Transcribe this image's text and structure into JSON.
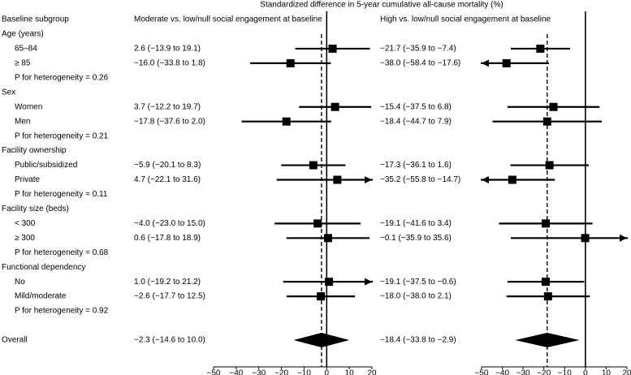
{
  "chart_data": {
    "type": "forest",
    "title": "Standardized difference in 5-year cumulative all-cause mortality (%)",
    "row_header": "Baseline subgroup",
    "groups": [
      {
        "name": "Age (years)",
        "subgroups": [
          "65–84",
          "≥ 85"
        ],
        "heterogeneity": "P for heterogeneity = 0.26"
      },
      {
        "name": "Sex",
        "subgroups": [
          "Women",
          "Men"
        ],
        "heterogeneity": "P for heterogeneity = 0.21"
      },
      {
        "name": "Facility ownership",
        "subgroups": [
          "Public/subsidized",
          "Private"
        ],
        "heterogeneity": "P for heterogeneity = 0.11"
      },
      {
        "name": "Facility size (beds)",
        "subgroups": [
          "< 300",
          "≥ 300"
        ],
        "heterogeneity": "P for heterogeneity = 0.68"
      },
      {
        "name": "Functional dependency",
        "subgroups": [
          "No",
          "Mild/moderate"
        ],
        "heterogeneity": "P for heterogeneity = 0.92"
      }
    ],
    "overall_label": "Overall",
    "panels": [
      {
        "title": "Moderate vs. low/null social engagement at baseline",
        "values": [
          2.6,
          -16.0,
          3.7,
          -17.8,
          -5.9,
          4.7,
          -4.0,
          0.6,
          1.0,
          -2.6
        ],
        "lower": [
          -13.9,
          -33.8,
          -12.2,
          -37.6,
          -20.1,
          -22.1,
          -23.0,
          -17.8,
          -19.2,
          -17.7
        ],
        "upper": [
          19.1,
          1.8,
          19.7,
          2.0,
          8.3,
          31.6,
          15.0,
          18.9,
          21.2,
          12.5
        ],
        "value_labels": [
          "2.6 (−13.9 to 19.1)",
          "−16.0 (−33.8 to 1.8)",
          "3.7 (−12.2 to 19.7)",
          "−17.8 (−37.6 to 2.0)",
          "−5.9 (−20.1 to 8.3)",
          "4.7 (−22.1 to 31.6)",
          "−4.0 (−23.0 to 15.0)",
          "0.6 (−17.8 to 18.9)",
          "1.0 (−19.2 to 21.2)",
          "−2.6 (−17.7 to 12.5)"
        ],
        "overall": -2.3,
        "overall_lower": -14.6,
        "overall_upper": 10.0,
        "overall_value_label": "−2.3 (−14.6 to 10.0)",
        "xlim": [
          -50,
          20
        ],
        "xticks": [
          {
            "value": -50,
            "label": "−50"
          },
          {
            "value": -40,
            "label": "−40"
          },
          {
            "value": -30,
            "label": "−30"
          },
          {
            "value": -20,
            "label": "−20"
          },
          {
            "value": -10,
            "label": "−10"
          },
          0,
          10,
          20
        ]
      },
      {
        "title": "High vs. low/null social engagement at baseline",
        "values": [
          -21.7,
          -38.0,
          -15.4,
          -18.4,
          -17.3,
          -35.2,
          -19.1,
          -0.1,
          -19.1,
          -18.0
        ],
        "lower": [
          -35.9,
          -58.4,
          -37.5,
          -44.7,
          -36.1,
          -55.8,
          -41.6,
          -35.9,
          -37.5,
          -38.0
        ],
        "upper": [
          -7.4,
          -17.6,
          6.8,
          7.9,
          1.6,
          -14.7,
          3.4,
          35.6,
          -0.6,
          2.1
        ],
        "value_labels": [
          "−21.7 (−35.9 to −7.4)",
          "−38.0 (−58.4 to −17.6)",
          "−15.4 (−37.5 to 6.8)",
          "−18.4 (−44.7 to 7.9)",
          "−17.3 (−36.1 to 1.6)",
          "−35.2 (−55.8 to −14.7)",
          "−19.1 (−41.6 to 3.4)",
          "−0.1 (−35.9 to 35.6)",
          "−19.1 (−37.5 to −0.6)",
          "−18.0 (−38.0 to 2.1)"
        ],
        "overall": -18.4,
        "overall_lower": -33.8,
        "overall_upper": -2.9,
        "overall_value_label": "−18.4 (−33.8 to −2.9)",
        "xlim": [
          -50,
          20
        ],
        "xticks": [
          {
            "value": -50,
            "label": "−50"
          },
          {
            "value": -40,
            "label": "−40"
          },
          {
            "value": -30,
            "label": "−30"
          },
          {
            "value": -20,
            "label": "−20"
          },
          {
            "value": -10,
            "label": "−10"
          },
          0,
          10,
          20
        ]
      }
    ]
  }
}
